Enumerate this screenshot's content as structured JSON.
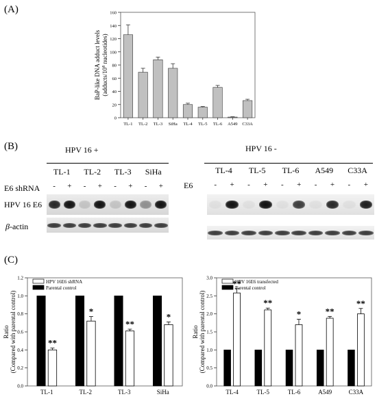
{
  "panel_labels": {
    "a": "(A)",
    "b": "(B)",
    "c": "(C)"
  },
  "chart_data": [
    {
      "type": "bar",
      "panel": "A",
      "categories": [
        "TL-1",
        "TL-2",
        "TL-3",
        "SiHa",
        "TL-4",
        "TL-5",
        "TL-6",
        "A549",
        "C33A"
      ],
      "values": [
        126,
        69,
        88,
        75,
        20,
        16,
        46,
        1,
        26
      ],
      "errors": [
        15,
        6,
        4,
        7,
        2,
        1,
        3,
        0.5,
        2
      ],
      "ylabel_line1": "BaP-like DNA adduct levels",
      "ylabel_line2_pre": "(adducts/10",
      "ylabel_line2_sup": "8",
      "ylabel_line2_post": " nucleotides)",
      "ylim": [
        0,
        160
      ],
      "yticks": [
        0,
        20,
        40,
        60,
        80,
        100,
        120,
        140,
        160
      ],
      "grid": false,
      "colors": {
        "bar": "#c0c0c0",
        "edge": "#333333"
      }
    },
    {
      "type": "bar",
      "panel": "C-left",
      "categories": [
        "TL-1",
        "TL-2",
        "TL-3",
        "SiHa"
      ],
      "series": [
        {
          "name": "Parental control",
          "values": [
            1.0,
            1.0,
            1.0,
            1.0
          ],
          "errors": [
            0,
            0,
            0,
            0
          ],
          "color": "#000000"
        },
        {
          "name": "HPV 16E6 shRNA",
          "values": [
            0.4,
            0.72,
            0.61,
            0.68
          ],
          "errors": [
            0.02,
            0.05,
            0.02,
            0.03
          ],
          "color": "#ffffff"
        }
      ],
      "significance": [
        "**",
        "*",
        "**",
        "*"
      ],
      "legend_order": [
        "HPV 16E6 shRNA",
        "Parental control"
      ],
      "legend_position": "top-left",
      "ylabel_line1": "Ratio",
      "ylabel_line2": "(Compared with parental control)",
      "ylim": [
        0,
        1.2
      ],
      "yticks": [
        "0.0",
        "0.2",
        "0.4",
        "0.6",
        "0.8",
        "1.0",
        "1.2"
      ],
      "grid": false
    },
    {
      "type": "bar",
      "panel": "C-right",
      "categories": [
        "TL-4",
        "TL-5",
        "TL-6",
        "A549",
        "C33A"
      ],
      "series": [
        {
          "name": "Parental control",
          "values": [
            1.0,
            1.0,
            1.0,
            1.0,
            1.0
          ],
          "errors": [
            0,
            0,
            0,
            0,
            0
          ],
          "color": "#000000"
        },
        {
          "name": "HPV 16E6 transfected",
          "values": [
            2.58,
            2.11,
            1.7,
            1.88,
            2.0
          ],
          "errors": [
            0.12,
            0.05,
            0.15,
            0.05,
            0.15
          ],
          "color": "#ffffff"
        }
      ],
      "significance": [
        "**",
        "**",
        "*",
        "**",
        "**"
      ],
      "legend_order": [
        "HPV 16E6 transfected",
        "Parental control"
      ],
      "legend_position": "top-left",
      "ylabel_line1": "Ratio",
      "ylabel_line2": "(Compared with parental control)",
      "ylim": [
        0,
        3.0
      ],
      "yticks": [
        "0.0",
        "0.5",
        "1.0",
        "1.5",
        "2.0",
        "2.5",
        "3.0"
      ],
      "grid": false
    }
  ],
  "western": {
    "left": {
      "group_label": "HPV 16 +",
      "cell_lines": [
        "TL-1",
        "TL-2",
        "TL-3",
        "SiHa"
      ],
      "condition_label": "E6 shRNA",
      "signs": [
        "-",
        "+",
        "-",
        "+",
        "-",
        "+",
        "-",
        "+"
      ],
      "band_intensity_e6": [
        0.9,
        1.0,
        0.15,
        1.0,
        0.15,
        1.0,
        0.4,
        1.0
      ]
    },
    "right": {
      "group_label": "HPV 16 -",
      "cell_lines": [
        "TL-4",
        "TL-5",
        "TL-6",
        "A549",
        "C33A"
      ],
      "condition_label": "E6",
      "signs": [
        "-",
        "+",
        "-",
        "+",
        "-",
        "+",
        "-",
        "+",
        "-",
        "+"
      ],
      "band_intensity_e6": [
        0.05,
        1.0,
        0.05,
        1.0,
        0.05,
        0.8,
        0.05,
        0.9,
        0.05,
        0.95
      ]
    },
    "row_labels": {
      "e6": "HPV 16 E6",
      "actin_symbol": "β",
      "actin_rest": "-actin"
    }
  }
}
